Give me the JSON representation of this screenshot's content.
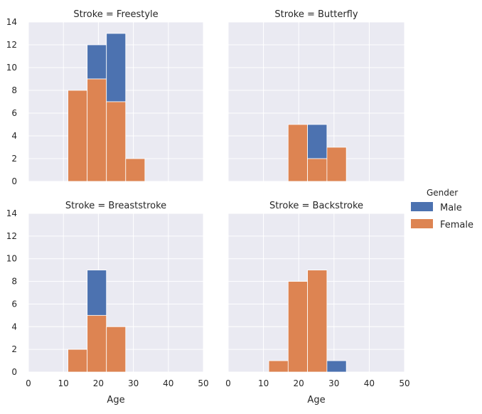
{
  "chart_data": {
    "type": "bar",
    "layout": "facet-grid-2x2-stacked-histogram",
    "xlabel": "Age",
    "x_ticks": [
      0,
      10,
      20,
      30,
      40,
      50
    ],
    "y_ticks": [
      0,
      2,
      4,
      6,
      8,
      10,
      12,
      14
    ],
    "xlim": [
      0,
      50
    ],
    "ylim": [
      0,
      14
    ],
    "grid": true,
    "legend": {
      "title": "Gender",
      "placement": "right",
      "entries": [
        {
          "name": "Male",
          "color": "#4c72b0"
        },
        {
          "name": "Female",
          "color": "#dd8452"
        }
      ]
    },
    "panels": [
      {
        "title": "Stroke = Freestyle",
        "bins": [
          {
            "x0": 11.3,
            "x1": 16.8,
            "female": 8,
            "total": 8
          },
          {
            "x0": 16.8,
            "x1": 22.3,
            "female": 9,
            "total": 12
          },
          {
            "x0": 22.3,
            "x1": 27.8,
            "female": 7,
            "total": 13
          },
          {
            "x0": 27.8,
            "x1": 33.3,
            "female": 2,
            "total": 2
          }
        ]
      },
      {
        "title": "Stroke = Butterfly",
        "bins": [
          {
            "x0": 17.0,
            "x1": 22.5,
            "female": 5,
            "total": 5
          },
          {
            "x0": 22.5,
            "x1": 28.0,
            "female": 2,
            "total": 5
          },
          {
            "x0": 28.0,
            "x1": 33.5,
            "female": 3,
            "total": 3
          }
        ]
      },
      {
        "title": "Stroke = Breaststroke",
        "bins": [
          {
            "x0": 11.3,
            "x1": 16.8,
            "female": 2,
            "total": 2
          },
          {
            "x0": 16.8,
            "x1": 22.3,
            "female": 5,
            "total": 9
          },
          {
            "x0": 22.3,
            "x1": 27.8,
            "female": 4,
            "total": 4
          }
        ]
      },
      {
        "title": "Stroke = Backstroke",
        "bins": [
          {
            "x0": 11.5,
            "x1": 17.0,
            "female": 1,
            "total": 1
          },
          {
            "x0": 17.0,
            "x1": 22.5,
            "female": 8,
            "total": 8
          },
          {
            "x0": 22.5,
            "x1": 28.0,
            "female": 9,
            "total": 9
          },
          {
            "x0": 28.0,
            "x1": 33.5,
            "female": 0,
            "total": 1
          }
        ]
      }
    ]
  }
}
